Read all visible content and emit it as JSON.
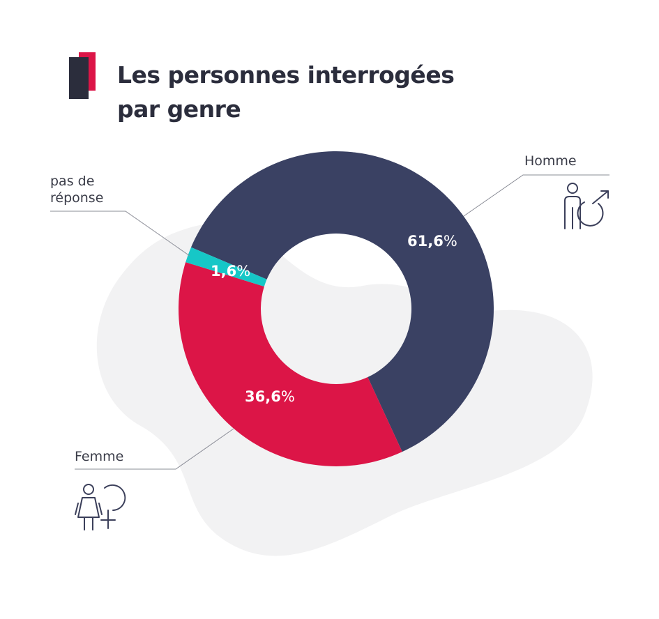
{
  "colors": {
    "homme": "#3a4163",
    "femme": "#dc1547",
    "no_answer": "#16c7c7",
    "title": "#2b2d3c",
    "accent_dark": "#2b2d3c",
    "accent_red": "#dc1547",
    "blob": "#f2f2f3"
  },
  "icons": {
    "title_marker": "title-bar-icon",
    "male": "male-figure-icon",
    "female": "female-figure-icon"
  },
  "chart_data": {
    "type": "pie",
    "donut": true,
    "title_lines": [
      "Les personnes interrogées",
      "par genre"
    ],
    "unit": "%",
    "segments": [
      {
        "key": "homme",
        "label": "Homme",
        "label_lines": [
          "Homme"
        ],
        "value": 61.6,
        "value_text": "61,6",
        "color": "#3a4163"
      },
      {
        "key": "femme",
        "label": "Femme",
        "label_lines": [
          "Femme"
        ],
        "value": 36.6,
        "value_text": "36,6",
        "color": "#dc1547"
      },
      {
        "key": "no_answer",
        "label": "pas de réponse",
        "label_lines": [
          "pas de",
          "réponse"
        ],
        "value": 1.6,
        "value_text": "1,6",
        "color": "#16c7c7"
      }
    ],
    "legend": "none"
  }
}
